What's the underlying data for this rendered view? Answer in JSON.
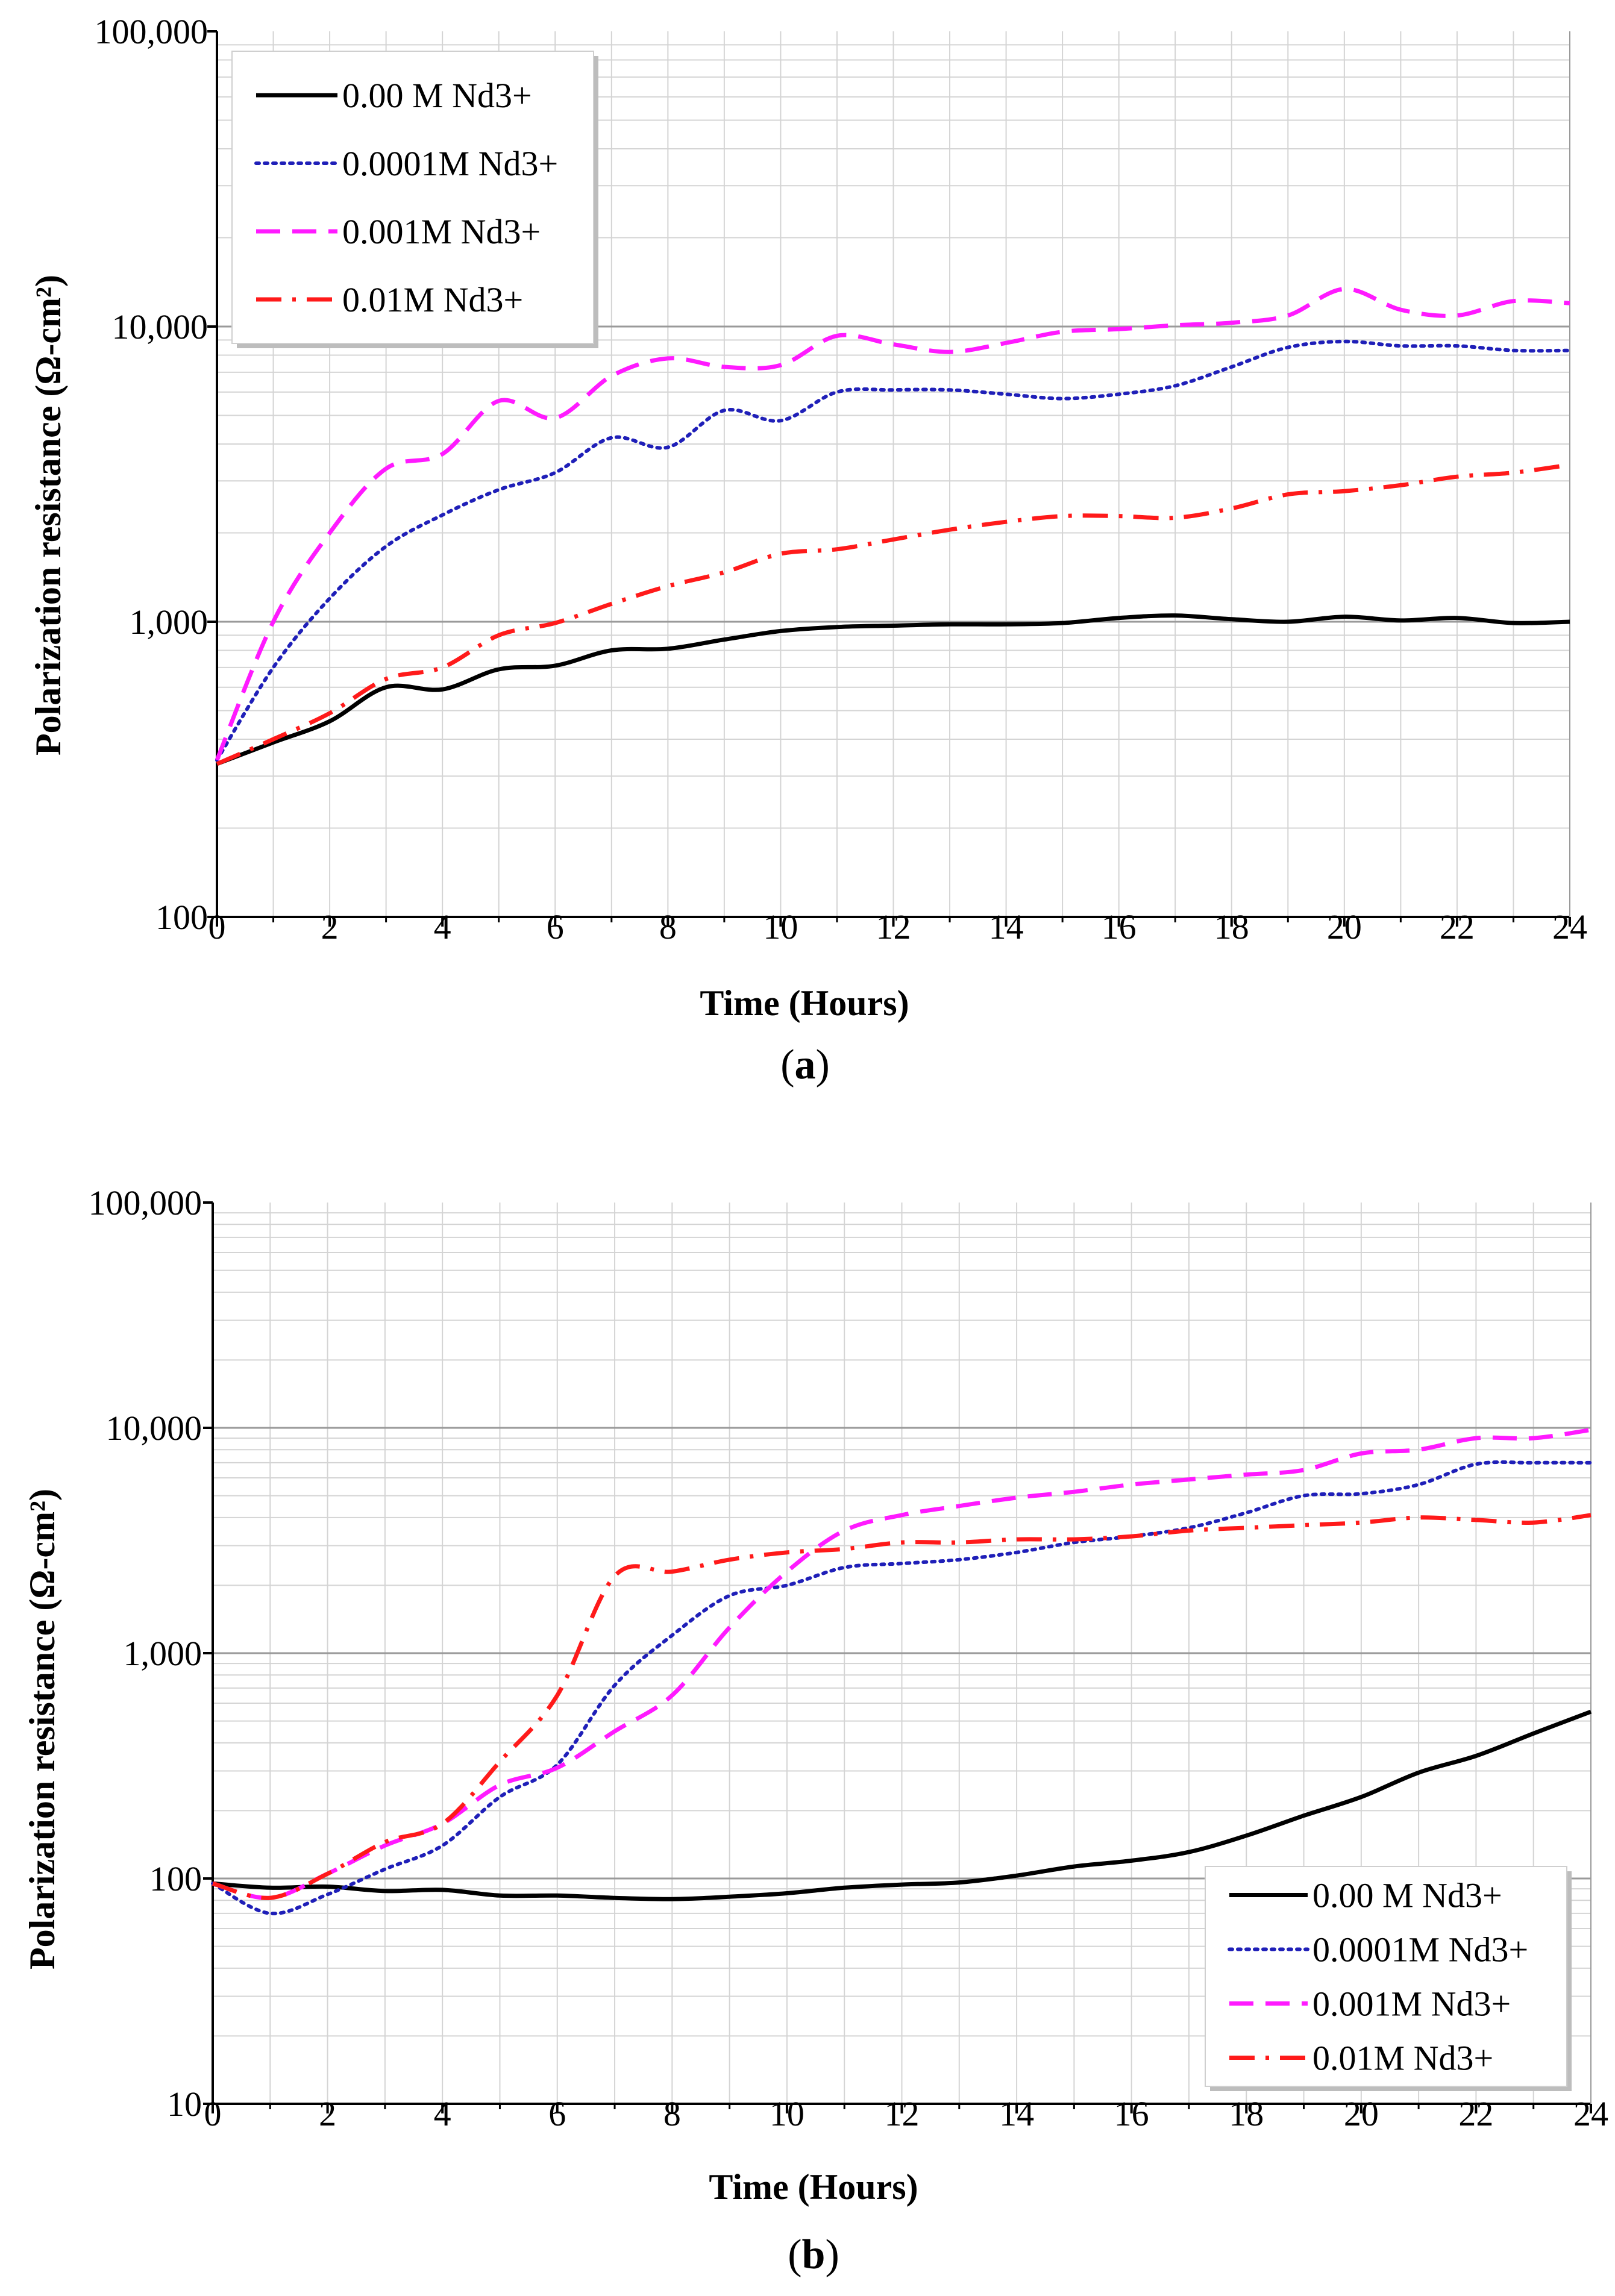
{
  "chart_data": [
    {
      "type": "line",
      "panel_label": "a",
      "xlabel": "Time (Hours)",
      "ylabel": "Polarization resistance (Ω-cm²)",
      "yscale": "log",
      "xlim": [
        0,
        24
      ],
      "ylim": [
        100,
        100000
      ],
      "x_ticks": [
        "0",
        "2",
        "4",
        "6",
        "8",
        "10",
        "12",
        "14",
        "16",
        "18",
        "20",
        "22",
        "24"
      ],
      "y_ticks": [
        "100",
        "1,000",
        "10,000",
        "100,000"
      ],
      "legend_position": "top-left",
      "grid": true,
      "series": [
        {
          "name": "0.00 M Nd3+",
          "color": "#000000",
          "style": "solid",
          "x": [
            0,
            1,
            2,
            3,
            4,
            5,
            6,
            7,
            8,
            9,
            10,
            11,
            12,
            13,
            14,
            15,
            16,
            17,
            18,
            19,
            20,
            21,
            22,
            23,
            24
          ],
          "y": [
            330,
            390,
            460,
            600,
            590,
            690,
            710,
            800,
            810,
            870,
            930,
            960,
            970,
            980,
            980,
            990,
            1030,
            1050,
            1020,
            1000,
            1040,
            1010,
            1030,
            990,
            1000
          ]
        },
        {
          "name": "0.0001M Nd3+",
          "color": "#1f1fb8",
          "style": "dotted",
          "x": [
            0,
            1,
            2,
            3,
            4,
            5,
            6,
            7,
            8,
            9,
            10,
            11,
            12,
            13,
            14,
            15,
            16,
            17,
            18,
            19,
            20,
            21,
            22,
            23,
            24
          ],
          "y": [
            340,
            700,
            1200,
            1800,
            2300,
            2800,
            3200,
            4200,
            3900,
            5200,
            4800,
            6000,
            6100,
            6100,
            5900,
            5700,
            5900,
            6300,
            7300,
            8500,
            8900,
            8600,
            8600,
            8300,
            8300
          ]
        },
        {
          "name": "0.001M Nd3+",
          "color": "#ff1aff",
          "style": "dashed",
          "x": [
            0,
            1,
            2,
            3,
            4,
            5,
            6,
            7,
            8,
            9,
            10,
            11,
            12,
            13,
            14,
            15,
            16,
            17,
            18,
            19,
            20,
            21,
            22,
            23,
            24
          ],
          "y": [
            340,
            1000,
            2000,
            3300,
            3700,
            5600,
            4900,
            6800,
            7800,
            7300,
            7400,
            9300,
            8700,
            8200,
            8800,
            9600,
            9800,
            10100,
            10300,
            10900,
            13400,
            11400,
            10900,
            12200,
            12000
          ]
        },
        {
          "name": "0.01M Nd3+",
          "color": "#ff1a1a",
          "style": "dashdot",
          "x": [
            0,
            1,
            2,
            3,
            4,
            5,
            6,
            7,
            8,
            9,
            10,
            11,
            12,
            13,
            14,
            15,
            16,
            17,
            18,
            19,
            20,
            21,
            22,
            23,
            24
          ],
          "y": [
            330,
            400,
            490,
            640,
            700,
            900,
            990,
            1150,
            1320,
            1470,
            1700,
            1760,
            1900,
            2050,
            2180,
            2280,
            2280,
            2250,
            2420,
            2700,
            2770,
            2900,
            3100,
            3200,
            3400
          ]
        }
      ]
    },
    {
      "type": "line",
      "panel_label": "b",
      "xlabel": "Time (Hours)",
      "ylabel": "Polarization resistance (Ω-cm²)",
      "yscale": "log",
      "xlim": [
        0,
        24
      ],
      "ylim": [
        10,
        100000
      ],
      "x_ticks": [
        "0",
        "2",
        "4",
        "6",
        "8",
        "10",
        "12",
        "14",
        "16",
        "18",
        "20",
        "22",
        "24"
      ],
      "y_ticks": [
        "10",
        "100",
        "1,000",
        "10,000",
        "100,000"
      ],
      "legend_position": "bottom-right",
      "grid": true,
      "series": [
        {
          "name": "0.00 M Nd3+",
          "color": "#000000",
          "style": "solid",
          "x": [
            0,
            1,
            2,
            3,
            4,
            5,
            6,
            7,
            8,
            9,
            10,
            11,
            12,
            13,
            14,
            15,
            16,
            17,
            18,
            19,
            20,
            21,
            22,
            23,
            24
          ],
          "y": [
            95,
            91,
            92,
            88,
            89,
            84,
            84,
            82,
            81,
            83,
            86,
            91,
            94,
            96,
            103,
            113,
            120,
            131,
            155,
            190,
            230,
            295,
            350,
            440,
            550
          ]
        },
        {
          "name": "0.0001M Nd3+",
          "color": "#1f1fb8",
          "style": "dotted",
          "x": [
            0,
            1,
            2,
            3,
            4,
            5,
            6,
            7,
            8,
            9,
            10,
            11,
            12,
            13,
            14,
            15,
            16,
            17,
            18,
            19,
            20,
            21,
            22,
            23,
            24
          ],
          "y": [
            95,
            70,
            85,
            110,
            140,
            230,
            320,
            720,
            1200,
            1800,
            2000,
            2400,
            2500,
            2600,
            2800,
            3100,
            3300,
            3600,
            4200,
            5000,
            5100,
            5600,
            6900,
            7000,
            7000
          ]
        },
        {
          "name": "0.001M Nd3+",
          "color": "#ff1aff",
          "style": "dashed",
          "x": [
            0,
            1,
            2,
            3,
            4,
            5,
            6,
            7,
            8,
            9,
            10,
            11,
            12,
            13,
            14,
            15,
            16,
            17,
            18,
            19,
            20,
            21,
            22,
            23,
            24
          ],
          "y": [
            95,
            82,
            105,
            140,
            175,
            260,
            310,
            450,
            650,
            1300,
            2300,
            3500,
            4100,
            4500,
            4900,
            5200,
            5600,
            5900,
            6200,
            6500,
            7700,
            8000,
            9000,
            9000,
            9800
          ]
        },
        {
          "name": "0.01M Nd3+",
          "color": "#ff1a1a",
          "style": "dashdot",
          "x": [
            0,
            1,
            2,
            3,
            4,
            5,
            6,
            7,
            8,
            9,
            10,
            11,
            12,
            13,
            14,
            15,
            16,
            17,
            18,
            19,
            20,
            21,
            22,
            23,
            24
          ],
          "y": [
            95,
            82,
            105,
            145,
            175,
            330,
            650,
            2200,
            2300,
            2600,
            2800,
            2900,
            3100,
            3100,
            3200,
            3200,
            3300,
            3500,
            3600,
            3700,
            3800,
            4000,
            3900,
            3800,
            4100
          ]
        }
      ]
    }
  ]
}
